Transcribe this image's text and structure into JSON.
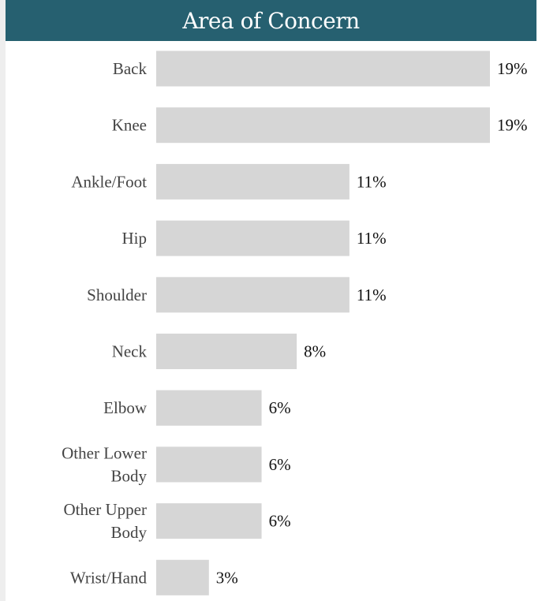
{
  "chart_data": {
    "type": "bar",
    "orientation": "horizontal",
    "title": "Area of Concern",
    "categories": [
      [
        "Back"
      ],
      [
        "Knee"
      ],
      [
        "Ankle/Foot"
      ],
      [
        "Hip"
      ],
      [
        "Shoulder"
      ],
      [
        "Neck"
      ],
      [
        "Elbow"
      ],
      [
        "Other Lower",
        "Body"
      ],
      [
        "Other Upper",
        "Body"
      ],
      [
        "Wrist/Hand"
      ]
    ],
    "values": [
      19,
      19,
      11,
      11,
      11,
      8,
      6,
      6,
      6,
      3
    ],
    "value_labels": [
      "19%",
      "19%",
      "11%",
      "11%",
      "11%",
      "8%",
      "6%",
      "6%",
      "6%",
      "3%"
    ],
    "xlim": [
      0,
      19
    ],
    "grid": false,
    "legend": "none",
    "colors": {
      "bar": "#d6d6d6",
      "title_background": "#266070",
      "title_text": "#ffffff",
      "category_text": "#444444",
      "value_text": "#111111"
    }
  }
}
